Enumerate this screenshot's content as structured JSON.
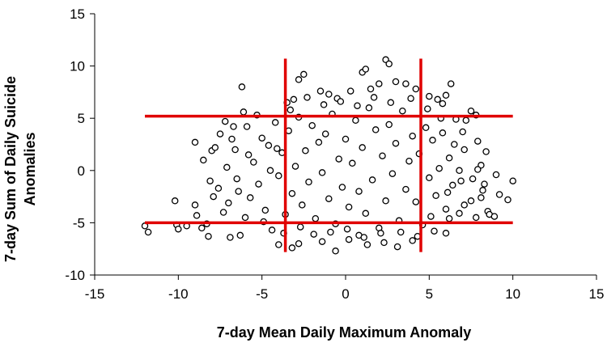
{
  "chart_data": {
    "type": "scatter",
    "title": "",
    "xlabel": "7-day Mean Daily Maximum Anomaly",
    "ylabel_lines": [
      "7-day Sum of Daily Suicide",
      "Anomalies"
    ],
    "xlim": [
      -15,
      15
    ],
    "ylim": [
      -10,
      15
    ],
    "xticks": [
      -15,
      -10,
      -5,
      0,
      5,
      10,
      15
    ],
    "yticks": [
      -10,
      -5,
      0,
      5,
      10,
      15
    ],
    "grid": false,
    "legend": "none",
    "marker": {
      "shape": "circle",
      "fill": "#ffffff",
      "stroke": "#000000"
    },
    "threshold_color": "#e00000",
    "thresholds": {
      "vertical": [
        {
          "x": -3.6,
          "y_from": -7.8,
          "y_to": 10.7
        },
        {
          "x": 4.5,
          "y_from": -7.8,
          "y_to": 10.7
        }
      ],
      "horizontal": [
        {
          "y": 5.2,
          "x_from": -12,
          "x_to": 10
        },
        {
          "y": -5.0,
          "x_from": -12,
          "x_to": 10
        }
      ]
    },
    "points": [
      [
        -12.0,
        -5.3
      ],
      [
        -11.8,
        -5.9
      ],
      [
        -10.2,
        -2.9
      ],
      [
        -10.1,
        -5.2
      ],
      [
        -10.0,
        -5.6
      ],
      [
        -9.5,
        -5.3
      ],
      [
        -9.0,
        2.7
      ],
      [
        -9.0,
        -3.3
      ],
      [
        -8.9,
        -4.3
      ],
      [
        -8.6,
        -5.5
      ],
      [
        -8.3,
        -5.1
      ],
      [
        -8.2,
        -6.3
      ],
      [
        -8.0,
        1.9
      ],
      [
        -7.8,
        2.2
      ],
      [
        -7.6,
        -1.7
      ],
      [
        -7.2,
        4.7
      ],
      [
        -7.1,
        0.3
      ],
      [
        -7.0,
        -3.1
      ],
      [
        -6.9,
        -6.4
      ],
      [
        -6.7,
        4.2
      ],
      [
        -6.5,
        -0.8
      ],
      [
        -6.3,
        -6.2
      ],
      [
        -6.2,
        8.0
      ],
      [
        -6.1,
        5.6
      ],
      [
        -5.9,
        4.2
      ],
      [
        -8.5,
        1.0
      ],
      [
        -8.1,
        -1.0
      ],
      [
        -7.9,
        -2.5
      ],
      [
        -7.5,
        3.5
      ],
      [
        -7.3,
        -4.0
      ],
      [
        -6.8,
        3.0
      ],
      [
        -6.6,
        2.0
      ],
      [
        -6.4,
        -2.0
      ],
      [
        -6.0,
        -4.5
      ],
      [
        -5.8,
        1.5
      ],
      [
        -3.5,
        6.5
      ],
      [
        -3.3,
        5.8
      ],
      [
        -2.8,
        8.7
      ],
      [
        -2.5,
        9.2
      ],
      [
        -1.5,
        7.6
      ],
      [
        -1.0,
        7.3
      ],
      [
        -0.5,
        6.9
      ],
      [
        0.3,
        7.6
      ],
      [
        1.0,
        9.4
      ],
      [
        1.2,
        9.7
      ],
      [
        1.5,
        7.8
      ],
      [
        2.0,
        8.3
      ],
      [
        2.4,
        10.6
      ],
      [
        2.6,
        10.2
      ],
      [
        3.0,
        8.5
      ],
      [
        3.6,
        8.3
      ],
      [
        4.2,
        7.8
      ],
      [
        5.0,
        7.1
      ],
      [
        5.5,
        6.8
      ],
      [
        6.0,
        7.2
      ],
      [
        6.3,
        8.3
      ],
      [
        5.8,
        6.4
      ],
      [
        7.5,
        5.7
      ],
      [
        7.2,
        4.8
      ],
      [
        7.8,
        5.3
      ],
      [
        -4.0,
        -7.1
      ],
      [
        -3.2,
        -7.4
      ],
      [
        -2.8,
        -7.0
      ],
      [
        -1.4,
        -6.8
      ],
      [
        -0.6,
        -7.7
      ],
      [
        0.2,
        -6.6
      ],
      [
        0.8,
        -6.2
      ],
      [
        1.3,
        -7.1
      ],
      [
        2.3,
        -6.9
      ],
      [
        3.1,
        -7.3
      ],
      [
        4.0,
        -6.7
      ],
      [
        5.3,
        -5.8
      ],
      [
        6.0,
        -6.0
      ],
      [
        6.2,
        -4.6
      ],
      [
        6.8,
        -4.1
      ],
      [
        7.1,
        -3.3
      ],
      [
        7.5,
        -2.9
      ],
      [
        7.8,
        -4.5
      ],
      [
        8.1,
        -2.6
      ],
      [
        8.3,
        -1.3
      ],
      [
        8.5,
        -3.9
      ],
      [
        8.6,
        -4.2
      ],
      [
        8.9,
        -4.4
      ],
      [
        9.2,
        -2.3
      ],
      [
        9.7,
        -2.8
      ],
      [
        10.0,
        -1.0
      ],
      [
        8.1,
        0.5
      ],
      [
        8.4,
        1.8
      ],
      [
        7.9,
        2.8
      ],
      [
        7.1,
        2.0
      ],
      [
        7.6,
        -0.8
      ],
      [
        7.9,
        0.1
      ],
      [
        8.2,
        -1.9
      ],
      [
        9.0,
        -0.4
      ],
      [
        7.0,
        3.7
      ],
      [
        -5.5,
        0.8
      ],
      [
        -5.2,
        -1.3
      ],
      [
        -5.0,
        3.1
      ],
      [
        -4.8,
        -3.8
      ],
      [
        -4.6,
        2.4
      ],
      [
        -4.4,
        -5.7
      ],
      [
        -4.2,
        4.6
      ],
      [
        -4.0,
        -0.5
      ],
      [
        -3.8,
        1.7
      ],
      [
        -3.6,
        -4.2
      ],
      [
        -3.4,
        3.8
      ],
      [
        -3.2,
        -2.2
      ],
      [
        -3.0,
        0.4
      ],
      [
        -2.8,
        5.1
      ],
      [
        -2.6,
        -3.3
      ],
      [
        -2.4,
        1.9
      ],
      [
        -2.2,
        -1.1
      ],
      [
        -2.0,
        4.3
      ],
      [
        -1.8,
        -4.6
      ],
      [
        -1.6,
        2.7
      ],
      [
        -1.4,
        -0.2
      ],
      [
        -1.2,
        3.5
      ],
      [
        -1.0,
        -2.7
      ],
      [
        -0.8,
        5.4
      ],
      [
        -0.6,
        -5.1
      ],
      [
        -0.4,
        1.1
      ],
      [
        -0.2,
        -1.6
      ],
      [
        0.0,
        3.0
      ],
      [
        0.2,
        -3.5
      ],
      [
        0.4,
        0.7
      ],
      [
        0.6,
        4.8
      ],
      [
        0.8,
        -2.0
      ],
      [
        1.0,
        2.2
      ],
      [
        1.2,
        -4.1
      ],
      [
        1.4,
        6.0
      ],
      [
        1.6,
        -0.9
      ],
      [
        1.8,
        3.9
      ],
      [
        2.0,
        -5.5
      ],
      [
        2.2,
        1.4
      ],
      [
        2.4,
        -2.9
      ],
      [
        2.6,
        4.4
      ],
      [
        2.8,
        -0.3
      ],
      [
        3.0,
        2.6
      ],
      [
        3.2,
        -4.8
      ],
      [
        3.4,
        5.7
      ],
      [
        3.6,
        -1.8
      ],
      [
        3.8,
        0.9
      ],
      [
        4.0,
        3.3
      ],
      [
        4.2,
        -3.0
      ],
      [
        4.4,
        1.6
      ],
      [
        4.6,
        -5.2
      ],
      [
        4.8,
        4.1
      ],
      [
        5.0,
        -0.7
      ],
      [
        5.2,
        2.9
      ],
      [
        5.4,
        -2.4
      ],
      [
        5.6,
        0.2
      ],
      [
        5.8,
        3.6
      ],
      [
        6.0,
        -3.7
      ],
      [
        6.2,
        1.2
      ],
      [
        6.4,
        -1.4
      ],
      [
        6.6,
        4.9
      ],
      [
        6.8,
        0.0
      ],
      [
        -5.7,
        -2.6
      ],
      [
        -5.3,
        5.3
      ],
      [
        -4.9,
        -4.9
      ],
      [
        -4.5,
        0.0
      ],
      [
        -4.1,
        2.1
      ],
      [
        -3.7,
        -6.0
      ],
      [
        -3.1,
        6.8
      ],
      [
        -2.7,
        -5.4
      ],
      [
        -2.3,
        7.0
      ],
      [
        -1.9,
        -6.1
      ],
      [
        -1.3,
        6.3
      ],
      [
        -0.9,
        -5.9
      ],
      [
        -0.3,
        6.6
      ],
      [
        0.1,
        -5.6
      ],
      [
        0.7,
        6.2
      ],
      [
        1.1,
        -6.4
      ],
      [
        1.7,
        7.0
      ],
      [
        2.1,
        -6.0
      ],
      [
        2.7,
        6.5
      ],
      [
        3.3,
        -5.9
      ],
      [
        3.9,
        6.9
      ],
      [
        4.3,
        -6.3
      ],
      [
        4.9,
        5.9
      ],
      [
        5.1,
        -4.4
      ],
      [
        5.7,
        5.0
      ],
      [
        6.1,
        -2.1
      ],
      [
        6.5,
        2.5
      ],
      [
        6.9,
        -1.0
      ]
    ]
  }
}
